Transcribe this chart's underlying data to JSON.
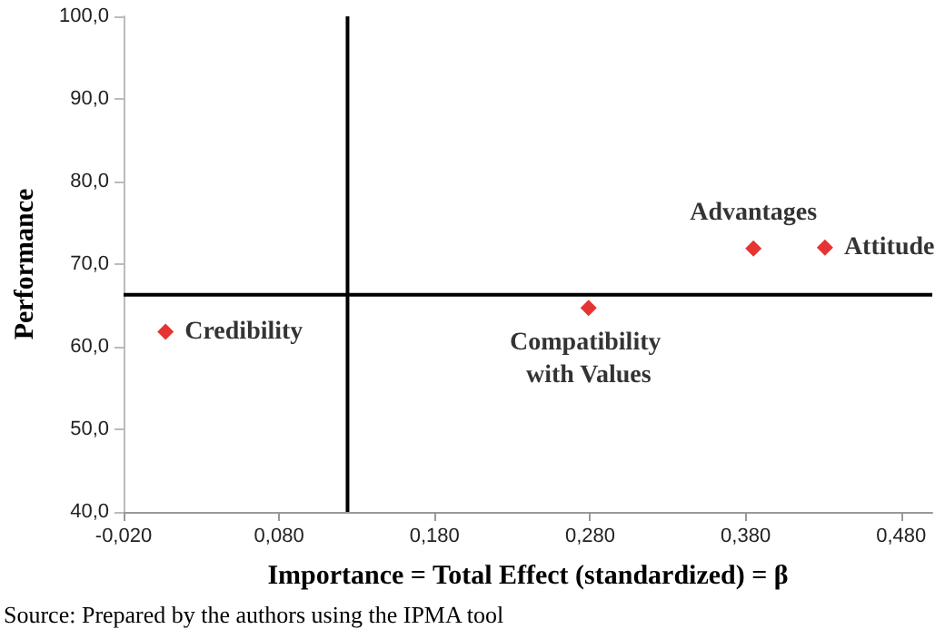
{
  "chart_data": {
    "type": "scatter",
    "xlabel": "Importance = Total Effect (standardized) = β",
    "ylabel": "Performance",
    "annotations": [
      "Source: Prepared by the authors using the IPMA tool"
    ],
    "series": [
      {
        "name": "Credibility",
        "color": "#e00000",
        "x": [
          0.007
        ],
        "values": [
          61.8
        ]
      },
      {
        "name": "Compatibility with Values",
        "color": "#e00000",
        "x": [
          0.279
        ],
        "values": [
          64.7
        ]
      },
      {
        "name": "Advantages",
        "color": "#e00000",
        "x": [
          0.385
        ],
        "values": [
          71.9
        ]
      },
      {
        "name": "Attitude",
        "color": "#e00000",
        "x": [
          0.431
        ],
        "values": [
          72.0
        ]
      }
    ],
    "xlim": [
      -0.02,
      0.5
    ],
    "xticks": [
      {
        "value": -0.02,
        "label": "-0,020"
      },
      {
        "value": 0.08,
        "label": "0,080"
      },
      {
        "value": 0.18,
        "label": "0,180"
      },
      {
        "value": 0.28,
        "label": "0,280"
      },
      {
        "value": 0.38,
        "label": "0,380"
      },
      {
        "value": 0.48,
        "label": "0,480"
      }
    ],
    "ylim": [
      40,
      100
    ],
    "yticks": [
      {
        "value": 40,
        "label": "40,0"
      },
      {
        "value": 50,
        "label": "50,0"
      },
      {
        "value": 60,
        "label": "60,0"
      },
      {
        "value": 70,
        "label": "70,0"
      },
      {
        "value": 80,
        "label": "80,0"
      },
      {
        "value": 90,
        "label": "90,0"
      },
      {
        "value": 100,
        "label": "100,0"
      }
    ],
    "ref_lines": [
      {
        "axis": "x",
        "value": 0.124,
        "color": "#000000"
      },
      {
        "axis": "y",
        "value": 66.3,
        "color": "#000000"
      }
    ],
    "marker": "diamond",
    "grid": false,
    "legend": false
  }
}
